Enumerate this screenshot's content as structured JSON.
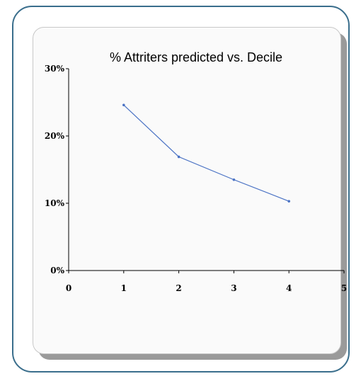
{
  "chart_data": {
    "type": "line",
    "title": "%  Attriters predicted vs. Decile",
    "xlabel": "",
    "ylabel": "",
    "xlim": [
      0,
      5
    ],
    "ylim": [
      0,
      30
    ],
    "x_ticks": [
      "0",
      "1",
      "2",
      "3",
      "4",
      "5"
    ],
    "y_ticks": [
      "0%",
      "10%",
      "20%",
      "30%"
    ],
    "grid": false,
    "legend": "none",
    "series": [
      {
        "x": [
          1,
          2,
          3,
          4
        ],
        "y": [
          24.6,
          16.9,
          13.5,
          10.3
        ],
        "color": "#4a72c4"
      }
    ]
  }
}
